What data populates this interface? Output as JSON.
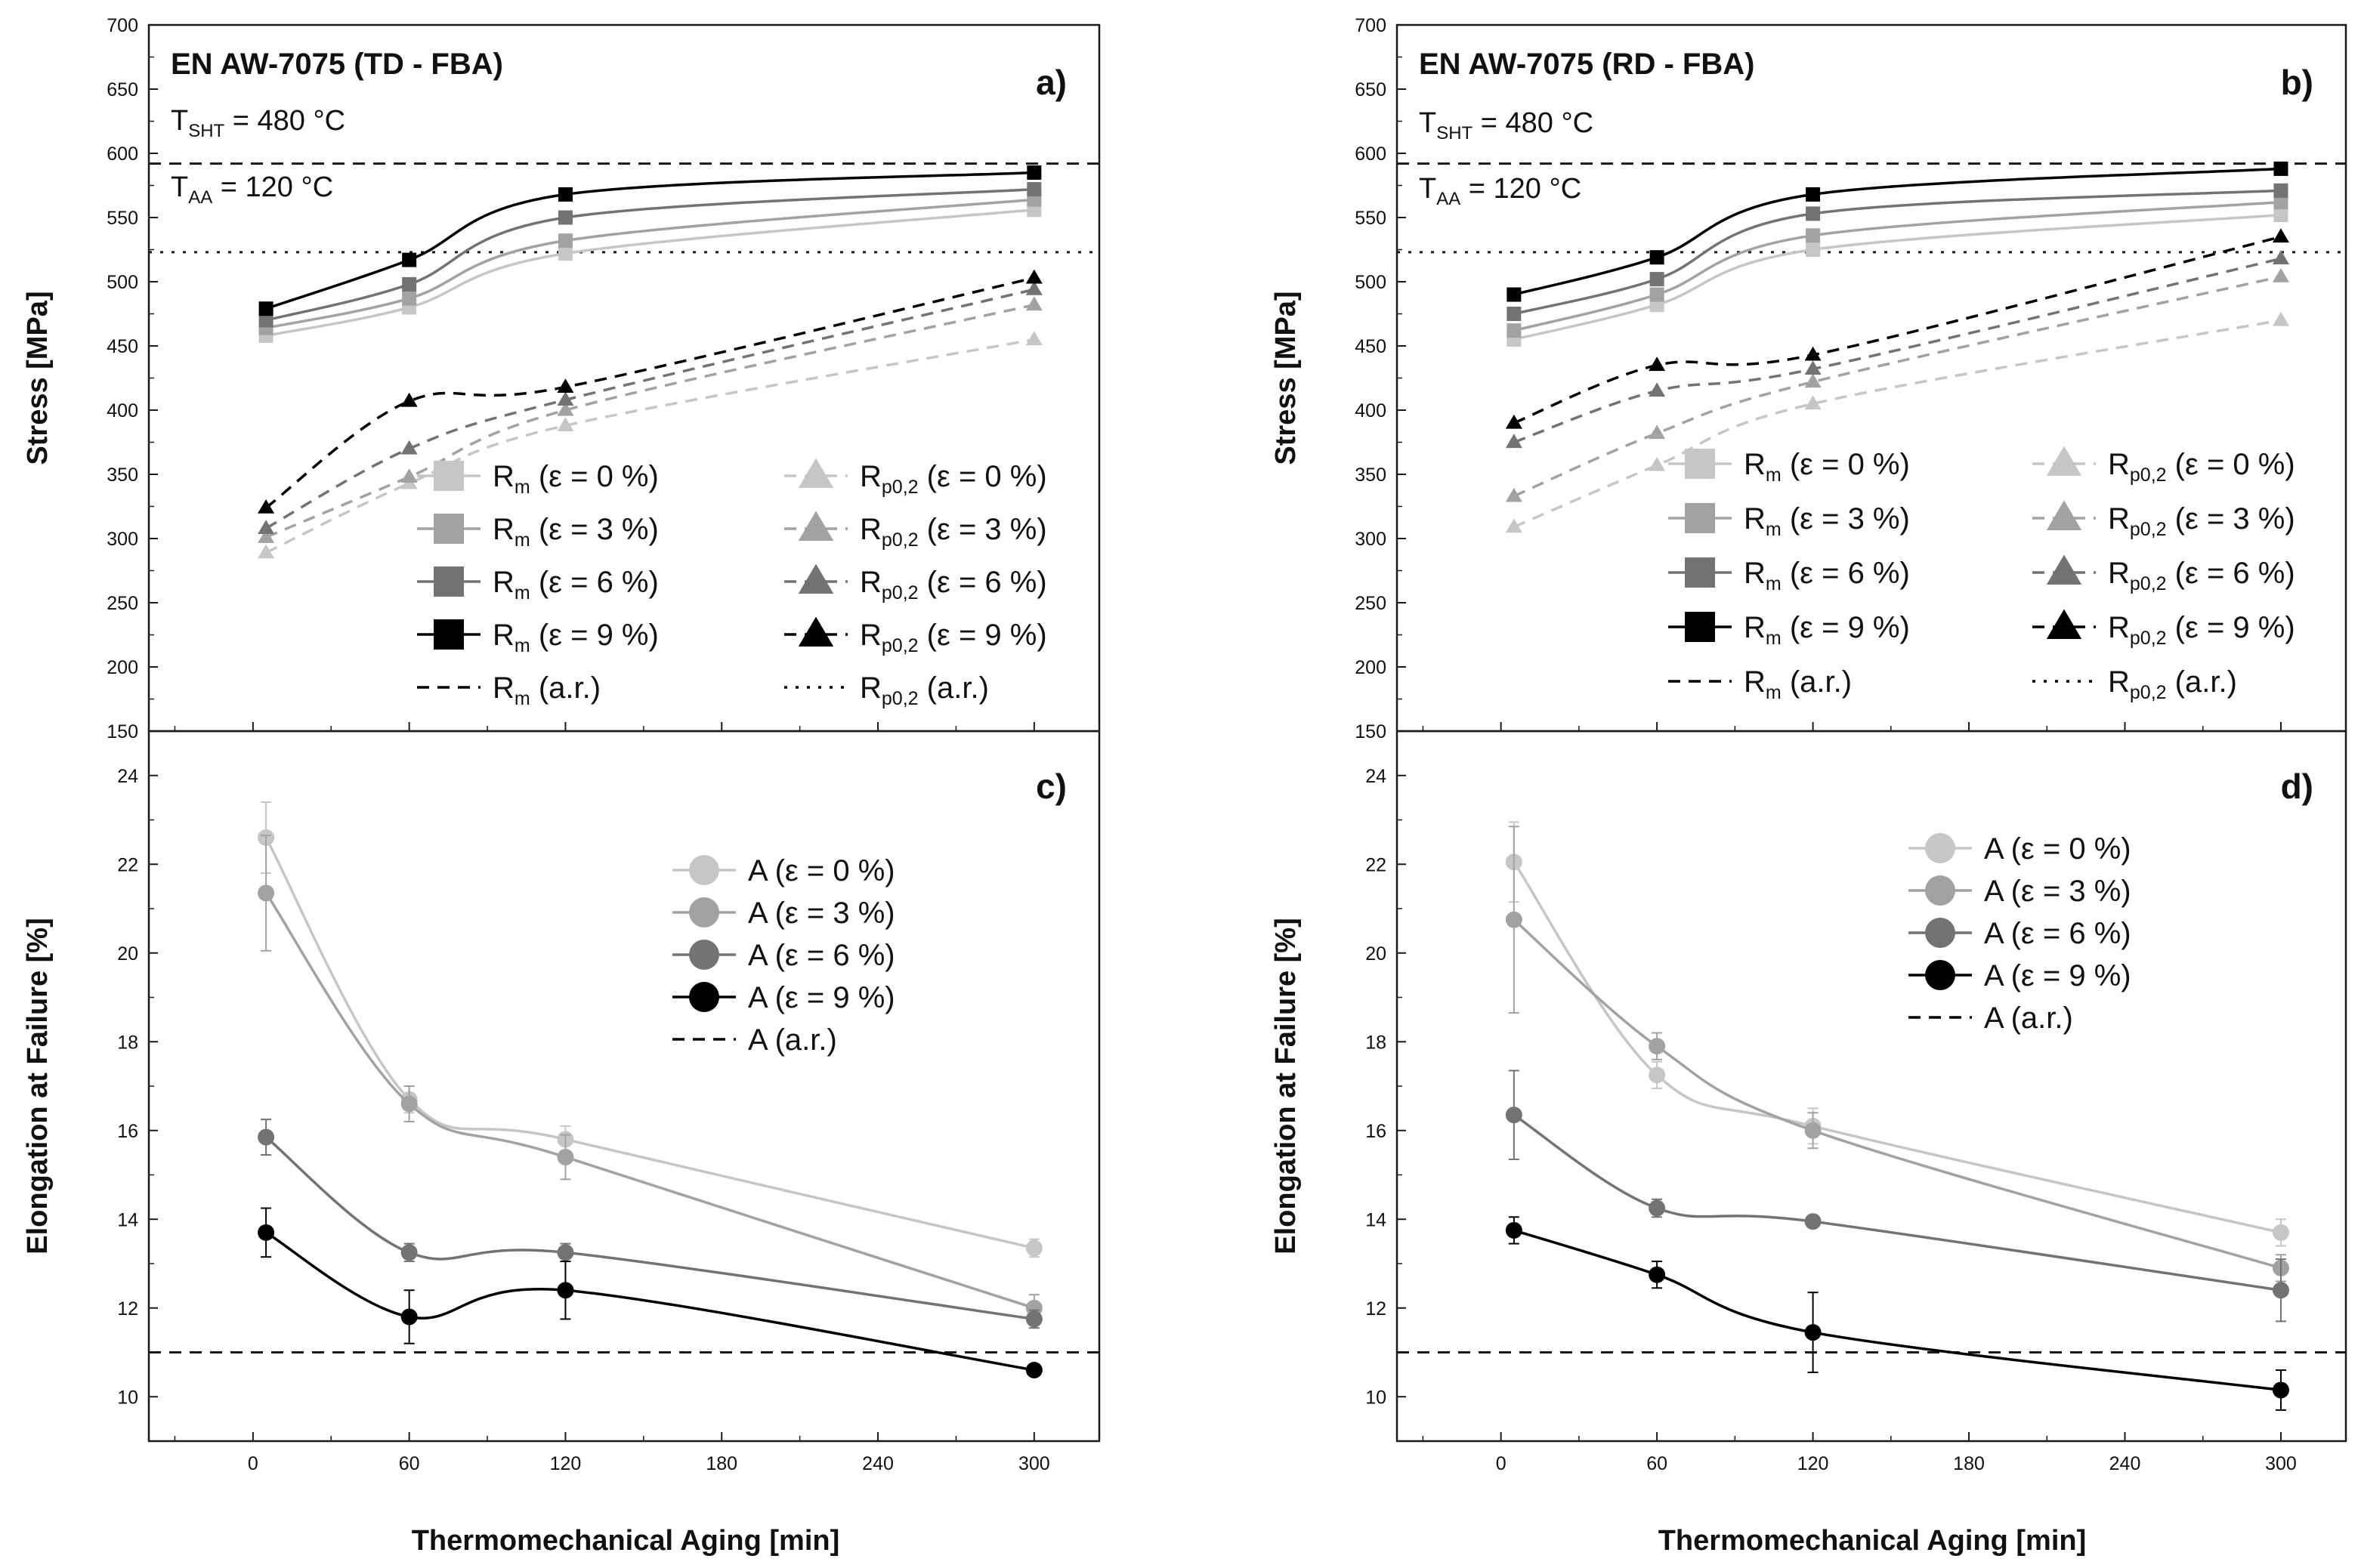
{
  "figure": {
    "xlabel": "Thermomechanical Aging [min]",
    "colors": {
      "eps0": "#c6c6c6",
      "eps3": "#a2a2a2",
      "eps6": "#737373",
      "eps9": "#000000",
      "frame": "#1a1a1a"
    }
  },
  "chart_data": [
    {
      "id": "a",
      "type": "line",
      "letter": "a)",
      "title": "EN AW-7075 (TD - FBA)",
      "annotations": [
        {
          "main": "T",
          "sub": "SHT",
          "rest": " = 480 °C"
        },
        {
          "main": "T",
          "sub": "AA",
          "rest": " = 120 °C"
        }
      ],
      "ylabel": "Stress [MPa]",
      "ylim": [
        150,
        700
      ],
      "yticks": [
        150,
        200,
        250,
        300,
        350,
        400,
        450,
        500,
        550,
        600,
        650,
        700
      ],
      "xlim": [
        -40,
        325
      ],
      "xticks": [
        0,
        60,
        120,
        180,
        240,
        300
      ],
      "ref_lines": [
        {
          "name": "Rm (a.r.)",
          "y": 592,
          "style": "dashed"
        },
        {
          "name": "Rp0,2 (a.r.)",
          "y": 523,
          "style": "dotted"
        }
      ],
      "series": [
        {
          "key": "eps0",
          "kind": "Rm",
          "marker": "square",
          "line": "solid",
          "x": [
            5,
            60,
            120,
            300
          ],
          "values": [
            458,
            480,
            522,
            556
          ]
        },
        {
          "key": "eps3",
          "kind": "Rm",
          "marker": "square",
          "line": "solid",
          "x": [
            5,
            60,
            120,
            300
          ],
          "values": [
            464,
            487,
            532,
            564
          ]
        },
        {
          "key": "eps6",
          "kind": "Rm",
          "marker": "square",
          "line": "solid",
          "x": [
            5,
            60,
            120,
            300
          ],
          "values": [
            470,
            498,
            550,
            572
          ]
        },
        {
          "key": "eps9",
          "kind": "Rm",
          "marker": "square",
          "line": "solid",
          "x": [
            5,
            60,
            120,
            300
          ],
          "values": [
            479,
            517,
            568,
            585
          ]
        },
        {
          "key": "eps0",
          "kind": "Rp",
          "marker": "triangle",
          "line": "dashed",
          "x": [
            5,
            60,
            120,
            300
          ],
          "values": [
            289,
            343,
            388,
            455
          ]
        },
        {
          "key": "eps3",
          "kind": "Rp",
          "marker": "triangle",
          "line": "dashed",
          "x": [
            5,
            60,
            120,
            300
          ],
          "values": [
            301,
            348,
            400,
            482
          ]
        },
        {
          "key": "eps6",
          "kind": "Rp",
          "marker": "triangle",
          "line": "dashed",
          "x": [
            5,
            60,
            120,
            300
          ],
          "values": [
            308,
            370,
            408,
            494
          ]
        },
        {
          "key": "eps9",
          "kind": "Rp",
          "marker": "triangle",
          "line": "dashed",
          "x": [
            5,
            60,
            120,
            300
          ],
          "values": [
            324,
            407,
            418,
            503
          ]
        }
      ],
      "legend": {
        "placement": "lower-right",
        "columns": [
          [
            {
              "key": "eps0",
              "marker": "square",
              "line": "solid",
              "main": "R",
              "sub": "m",
              "rest": " (ε = 0 %)"
            },
            {
              "key": "eps3",
              "marker": "square",
              "line": "solid",
              "main": "R",
              "sub": "m",
              "rest": " (ε = 3 %)"
            },
            {
              "key": "eps6",
              "marker": "square",
              "line": "solid",
              "main": "R",
              "sub": "m",
              "rest": " (ε = 6 %)"
            },
            {
              "key": "eps9",
              "marker": "square",
              "line": "solid",
              "main": "R",
              "sub": "m",
              "rest": " (ε = 9 %)"
            },
            {
              "key": "eps9",
              "marker": "none",
              "line": "dashed",
              "main": "R",
              "sub": "m",
              "rest": " (a.r.)"
            }
          ],
          [
            {
              "key": "eps0",
              "marker": "triangle",
              "line": "dashed",
              "main": "R",
              "sub": "p0,2",
              "rest": " (ε = 0 %)"
            },
            {
              "key": "eps3",
              "marker": "triangle",
              "line": "dashed",
              "main": "R",
              "sub": "p0,2",
              "rest": " (ε = 3 %)"
            },
            {
              "key": "eps6",
              "marker": "triangle",
              "line": "dashed",
              "main": "R",
              "sub": "p0,2",
              "rest": " (ε = 6 %)"
            },
            {
              "key": "eps9",
              "marker": "triangle",
              "line": "dashed",
              "main": "R",
              "sub": "p0,2",
              "rest": " (ε = 9 %)"
            },
            {
              "key": "eps9",
              "marker": "none",
              "line": "dotted",
              "main": "R",
              "sub": "p0,2",
              "rest": " (a.r.)"
            }
          ]
        ]
      }
    },
    {
      "id": "b",
      "type": "line",
      "letter": "b)",
      "title": "EN AW-7075 (RD - FBA)",
      "annotations": [
        {
          "main": "T",
          "sub": "SHT",
          "rest": " = 480 °C"
        },
        {
          "main": "T",
          "sub": "AA",
          "rest": " = 120 °C"
        }
      ],
      "ylabel": "Stress [MPa]",
      "ylim": [
        150,
        700
      ],
      "yticks": [
        150,
        200,
        250,
        300,
        350,
        400,
        450,
        500,
        550,
        600,
        650,
        700
      ],
      "xlim": [
        -40,
        325
      ],
      "xticks": [
        0,
        60,
        120,
        180,
        240,
        300
      ],
      "ref_lines": [
        {
          "name": "Rm (a.r.)",
          "y": 592,
          "style": "dashed"
        },
        {
          "name": "Rp0,2 (a.r.)",
          "y": 523,
          "style": "dotted"
        }
      ],
      "series": [
        {
          "key": "eps0",
          "kind": "Rm",
          "marker": "square",
          "line": "solid",
          "x": [
            5,
            60,
            120,
            300
          ],
          "values": [
            455,
            482,
            525,
            552
          ]
        },
        {
          "key": "eps3",
          "kind": "Rm",
          "marker": "square",
          "line": "solid",
          "x": [
            5,
            60,
            120,
            300
          ],
          "values": [
            462,
            490,
            536,
            562
          ]
        },
        {
          "key": "eps6",
          "kind": "Rm",
          "marker": "square",
          "line": "solid",
          "x": [
            5,
            60,
            120,
            300
          ],
          "values": [
            475,
            502,
            553,
            571
          ]
        },
        {
          "key": "eps9",
          "kind": "Rm",
          "marker": "square",
          "line": "solid",
          "x": [
            5,
            60,
            120,
            300
          ],
          "values": [
            490,
            519,
            568,
            588
          ]
        },
        {
          "key": "eps0",
          "kind": "Rp",
          "marker": "triangle",
          "line": "dashed",
          "x": [
            5,
            60,
            120,
            300
          ],
          "values": [
            309,
            357,
            405,
            470
          ]
        },
        {
          "key": "eps3",
          "kind": "Rp",
          "marker": "triangle",
          "line": "dashed",
          "x": [
            5,
            60,
            120,
            300
          ],
          "values": [
            333,
            382,
            422,
            504
          ]
        },
        {
          "key": "eps6",
          "kind": "Rp",
          "marker": "triangle",
          "line": "dashed",
          "x": [
            5,
            60,
            120,
            300
          ],
          "values": [
            375,
            415,
            432,
            518
          ]
        },
        {
          "key": "eps9",
          "kind": "Rp",
          "marker": "triangle",
          "line": "dashed",
          "x": [
            5,
            60,
            120,
            300
          ],
          "values": [
            390,
            435,
            443,
            535
          ]
        }
      ],
      "legend": {
        "placement": "lower-right",
        "columns": [
          [
            {
              "key": "eps0",
              "marker": "square",
              "line": "solid",
              "main": "R",
              "sub": "m",
              "rest": " (ε = 0 %)"
            },
            {
              "key": "eps3",
              "marker": "square",
              "line": "solid",
              "main": "R",
              "sub": "m",
              "rest": " (ε = 3 %)"
            },
            {
              "key": "eps6",
              "marker": "square",
              "line": "solid",
              "main": "R",
              "sub": "m",
              "rest": " (ε = 6 %)"
            },
            {
              "key": "eps9",
              "marker": "square",
              "line": "solid",
              "main": "R",
              "sub": "m",
              "rest": " (ε = 9 %)"
            },
            {
              "key": "eps9",
              "marker": "none",
              "line": "dashed",
              "main": "R",
              "sub": "m",
              "rest": " (a.r.)"
            }
          ],
          [
            {
              "key": "eps0",
              "marker": "triangle",
              "line": "dashed",
              "main": "R",
              "sub": "p0,2",
              "rest": " (ε = 0 %)"
            },
            {
              "key": "eps3",
              "marker": "triangle",
              "line": "dashed",
              "main": "R",
              "sub": "p0,2",
              "rest": " (ε = 3 %)"
            },
            {
              "key": "eps6",
              "marker": "triangle",
              "line": "dashed",
              "main": "R",
              "sub": "p0,2",
              "rest": " (ε = 6 %)"
            },
            {
              "key": "eps9",
              "marker": "triangle",
              "line": "dashed",
              "main": "R",
              "sub": "p0,2",
              "rest": " (ε = 9 %)"
            },
            {
              "key": "eps9",
              "marker": "none",
              "line": "dotted",
              "main": "R",
              "sub": "p0,2",
              "rest": " (a.r.)"
            }
          ]
        ]
      }
    },
    {
      "id": "c",
      "type": "line",
      "letter": "c)",
      "ylabel": "Elongation at Failure [%]",
      "ylim": [
        9,
        25
      ],
      "yticks": [
        10,
        12,
        14,
        16,
        18,
        20,
        22,
        24
      ],
      "xlim": [
        -40,
        325
      ],
      "xticks": [
        0,
        60,
        120,
        180,
        240,
        300
      ],
      "ref_lines": [
        {
          "name": "A (a.r.)",
          "y": 11.0,
          "style": "dashed"
        }
      ],
      "series": [
        {
          "key": "eps0",
          "marker": "circle",
          "line": "solid",
          "x": [
            5,
            60,
            120,
            300
          ],
          "values": [
            22.6,
            16.7,
            15.8,
            13.35
          ],
          "err": [
            0.8,
            0.3,
            0.3,
            0.2
          ]
        },
        {
          "key": "eps3",
          "marker": "circle",
          "line": "solid",
          "x": [
            5,
            60,
            120,
            300
          ],
          "values": [
            21.35,
            16.6,
            15.4,
            12.0
          ],
          "err": [
            1.3,
            0.4,
            0.5,
            0.3
          ]
        },
        {
          "key": "eps6",
          "marker": "circle",
          "line": "solid",
          "x": [
            5,
            60,
            120,
            300
          ],
          "values": [
            15.85,
            13.25,
            13.25,
            11.75
          ],
          "err": [
            0.4,
            0.2,
            0.2,
            0.2
          ]
        },
        {
          "key": "eps9",
          "marker": "circle",
          "line": "solid",
          "x": [
            5,
            60,
            120,
            300
          ],
          "values": [
            13.7,
            11.8,
            12.4,
            10.6
          ],
          "err": [
            0.55,
            0.6,
            0.65,
            0.1
          ]
        }
      ],
      "legend": {
        "placement": "top-right",
        "columns": [
          [
            {
              "key": "eps0",
              "marker": "circle",
              "line": "solid",
              "main": "A",
              "sub": "",
              "rest": " (ε = 0 %)"
            },
            {
              "key": "eps3",
              "marker": "circle",
              "line": "solid",
              "main": "A",
              "sub": "",
              "rest": " (ε = 3 %)"
            },
            {
              "key": "eps6",
              "marker": "circle",
              "line": "solid",
              "main": "A",
              "sub": "",
              "rest": " (ε = 6 %)"
            },
            {
              "key": "eps9",
              "marker": "circle",
              "line": "solid",
              "main": "A",
              "sub": "",
              "rest": " (ε = 9 %)"
            },
            {
              "key": "eps9",
              "marker": "none",
              "line": "dashed",
              "main": "A",
              "sub": "",
              "rest": " (a.r.)"
            }
          ]
        ]
      }
    },
    {
      "id": "d",
      "type": "line",
      "letter": "d)",
      "ylabel": "Elongation at Failure [%]",
      "ylim": [
        9,
        25
      ],
      "yticks": [
        10,
        12,
        14,
        16,
        18,
        20,
        22,
        24
      ],
      "xlim": [
        -40,
        325
      ],
      "xticks": [
        0,
        60,
        120,
        180,
        240,
        300
      ],
      "ref_lines": [
        {
          "name": "A (a.r.)",
          "y": 11.0,
          "style": "dashed"
        }
      ],
      "series": [
        {
          "key": "eps0",
          "marker": "circle",
          "line": "solid",
          "x": [
            5,
            60,
            120,
            300
          ],
          "values": [
            22.05,
            17.25,
            16.1,
            13.7
          ],
          "err": [
            0.9,
            0.3,
            0.4,
            0.3
          ]
        },
        {
          "key": "eps3",
          "marker": "circle",
          "line": "solid",
          "x": [
            5,
            60,
            120,
            300
          ],
          "values": [
            20.75,
            17.9,
            16.0,
            12.9
          ],
          "err": [
            2.1,
            0.3,
            0.4,
            0.3
          ]
        },
        {
          "key": "eps6",
          "marker": "circle",
          "line": "solid",
          "x": [
            5,
            60,
            120,
            300
          ],
          "values": [
            16.35,
            14.25,
            13.95,
            12.4
          ],
          "err": [
            1.0,
            0.2,
            0.1,
            0.7
          ]
        },
        {
          "key": "eps9",
          "marker": "circle",
          "line": "solid",
          "x": [
            5,
            60,
            120,
            300
          ],
          "values": [
            13.75,
            12.75,
            11.45,
            10.15
          ],
          "err": [
            0.3,
            0.3,
            0.9,
            0.45
          ]
        }
      ],
      "legend": {
        "placement": "top-center",
        "columns": [
          [
            {
              "key": "eps0",
              "marker": "circle",
              "line": "solid",
              "main": "A",
              "sub": "",
              "rest": " (ε = 0 %)"
            },
            {
              "key": "eps3",
              "marker": "circle",
              "line": "solid",
              "main": "A",
              "sub": "",
              "rest": " (ε = 3 %)"
            },
            {
              "key": "eps6",
              "marker": "circle",
              "line": "solid",
              "main": "A",
              "sub": "",
              "rest": " (ε = 6 %)"
            },
            {
              "key": "eps9",
              "marker": "circle",
              "line": "solid",
              "main": "A",
              "sub": "",
              "rest": " (ε = 9 %)"
            },
            {
              "key": "eps9",
              "marker": "none",
              "line": "dashed",
              "main": "A",
              "sub": "",
              "rest": " (a.r.)"
            }
          ]
        ]
      }
    }
  ]
}
